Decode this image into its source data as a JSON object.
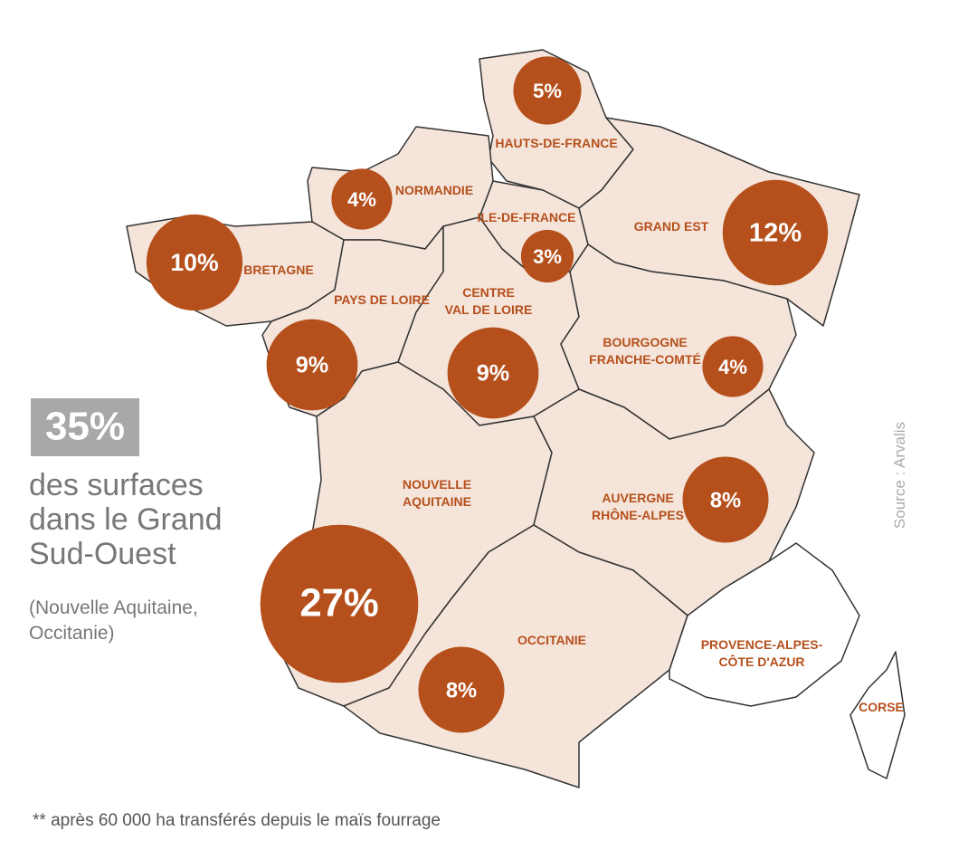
{
  "map": {
    "regions": [
      {
        "name": [
          "HAUTS-DE-FRANCE"
        ],
        "value": 5,
        "value_label": "5%"
      },
      {
        "name": [
          "NORMANDIE"
        ],
        "value": 4,
        "value_label": "4%"
      },
      {
        "name": [
          "ILE-DE-FRANCE"
        ],
        "value": 3,
        "value_label": "3%"
      },
      {
        "name": [
          "GRAND EST"
        ],
        "value": 12,
        "value_label": "12%"
      },
      {
        "name": [
          "BRETAGNE"
        ],
        "value": 10,
        "value_label": "10%"
      },
      {
        "name": [
          "PAYS DE LOIRE"
        ],
        "value": 9,
        "value_label": "9%"
      },
      {
        "name": [
          "CENTRE",
          "VAL DE LOIRE"
        ],
        "value": 9,
        "value_label": "9%"
      },
      {
        "name": [
          "BOURGOGNE",
          "FRANCHE-COMTÉ"
        ],
        "value": 4,
        "value_label": "4%"
      },
      {
        "name": [
          "AUVERGNE",
          "RHÔNE-ALPES"
        ],
        "value": 8,
        "value_label": "8%"
      },
      {
        "name": [
          "NOUVELLE",
          "AQUITAINE"
        ],
        "value": 27,
        "value_label": "27%"
      },
      {
        "name": [
          "OCCITANIE"
        ],
        "value": 8,
        "value_label": "8%"
      },
      {
        "name": [
          "PROVENCE-ALPES-",
          "CÔTE D'AZUR"
        ]
      },
      {
        "name": [
          "CORSE"
        ]
      }
    ]
  },
  "highlight": {
    "value": 35,
    "value_label": "35%",
    "text": [
      "des surfaces",
      "dans le Grand",
      "Sud-Ouest"
    ],
    "note": [
      "(Nouvelle Aquitaine,",
      "Occitanie)"
    ]
  },
  "source": "Source : Arvalis",
  "footnote": "** après 60 000 ha transférés depuis le maïs fourrage"
}
